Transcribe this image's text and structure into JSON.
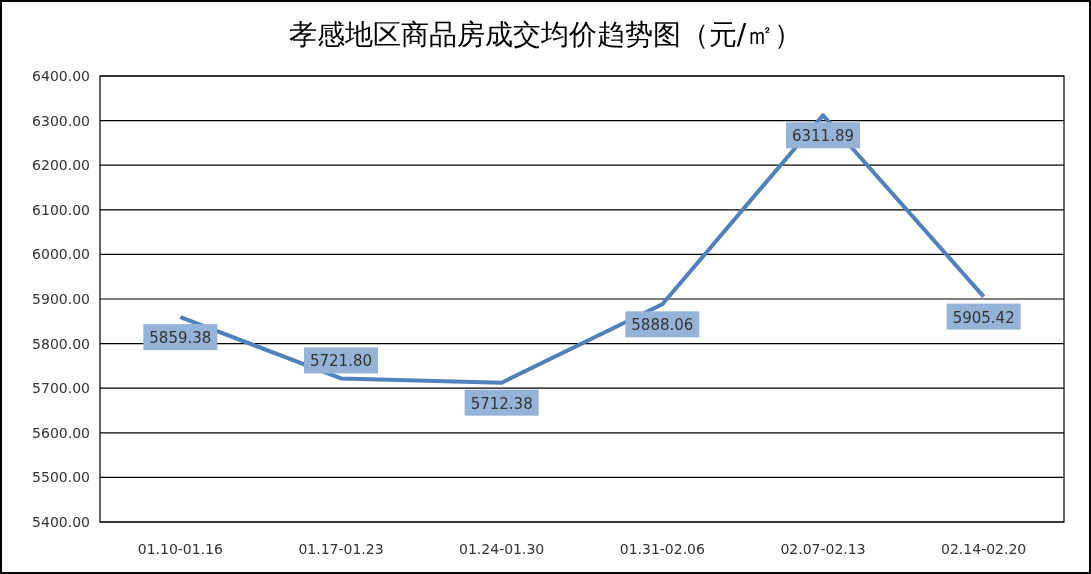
{
  "chart_data": {
    "type": "line",
    "title": "孝感地区商品房成交均价趋势图（元/㎡）",
    "categories": [
      "01.10-01.16",
      "01.17-01.23",
      "01.24-01.30",
      "01.31-02.06",
      "02.07-02.13",
      "02.14-02.20"
    ],
    "series": [
      {
        "color": "#4f81bd",
        "values": [
          5859.38,
          5721.8,
          5712.38,
          5888.06,
          6311.89,
          5905.42
        ]
      }
    ],
    "value_labels": [
      "5859.38",
      "5721.80",
      "5712.38",
      "5888.06",
      "6311.89",
      "5905.42"
    ],
    "ylim": [
      5400,
      6400
    ],
    "yticks": [
      {
        "value": 5400,
        "label": "5400.00"
      },
      {
        "value": 5500,
        "label": "5500.00"
      },
      {
        "value": 5600,
        "label": "5600.00"
      },
      {
        "value": 5700,
        "label": "5700.00"
      },
      {
        "value": 5800,
        "label": "5800.00"
      },
      {
        "value": 5900,
        "label": "5900.00"
      },
      {
        "value": 6000,
        "label": "6000.00"
      },
      {
        "value": 6100,
        "label": "6100.00"
      },
      {
        "value": 6200,
        "label": "6200.00"
      },
      {
        "value": 6300,
        "label": "6300.00"
      },
      {
        "value": 6400,
        "label": "6400.00"
      }
    ],
    "grid": "y",
    "marker": "none",
    "line_style": "solid"
  }
}
